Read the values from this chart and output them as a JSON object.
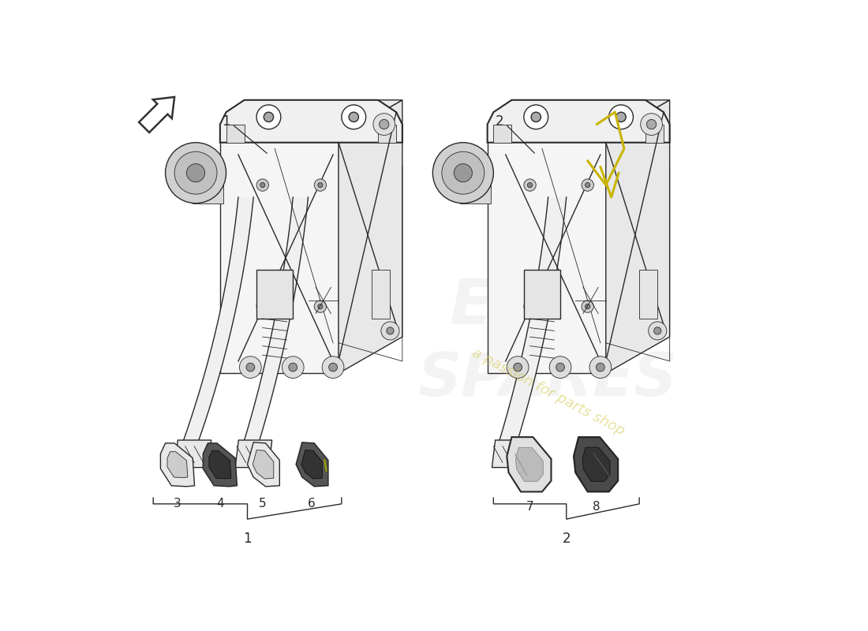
{
  "background_color": "#ffffff",
  "line_color": "#2a2a2a",
  "lw_main": 1.0,
  "lw_thin": 0.6,
  "lw_thick": 1.5,
  "watermark_text": "a passion for parts shop",
  "watermark_color": "#d4c850",
  "watermark_alpha": 0.55,
  "bracket_label_1": "1",
  "bracket_label_2": "2",
  "arrow_color": "#333333",
  "yellow_wire": "#c8b400",
  "gray_fill": "#d8d8d8",
  "mid_gray": "#aaaaaa",
  "dark_gray": "#555555",
  "light_gray": "#eeeeee",
  "pad_items_left": [
    {
      "label": "3",
      "style": "outline"
    },
    {
      "label": "4",
      "style": "dark"
    },
    {
      "label": "5",
      "style": "outline"
    },
    {
      "label": "6",
      "style": "dark_green"
    }
  ],
  "pad_items_right": [
    {
      "label": "7",
      "style": "outline_large"
    },
    {
      "label": "8",
      "style": "dark_large"
    }
  ],
  "assembly_labels": [
    "1",
    "2"
  ]
}
